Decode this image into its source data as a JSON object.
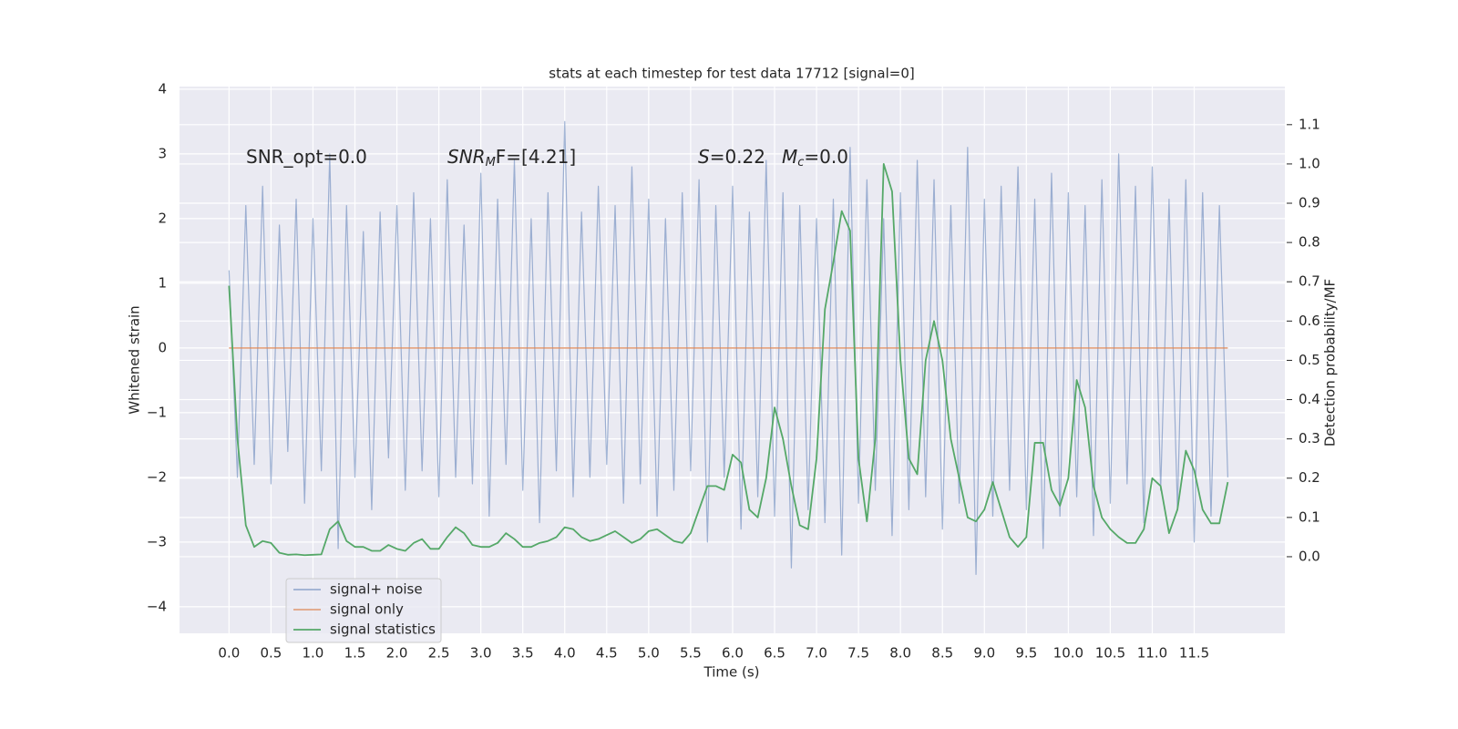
{
  "chart_data": {
    "type": "line",
    "title": "stats at each timestep for test data 17712 [signal=0]",
    "xlabel": "Time (s)",
    "ylabel": "Whitened strain",
    "y2label": "Detection probability/MF",
    "x": [
      0,
      0.1,
      0.2,
      0.3,
      0.4,
      0.5,
      0.6,
      0.7,
      0.8,
      0.9,
      1,
      1.1,
      1.2,
      1.3,
      1.4,
      1.5,
      1.6,
      1.7,
      1.8,
      1.9,
      2,
      2.1,
      2.2,
      2.3,
      2.4,
      2.5,
      2.6,
      2.7,
      2.8,
      2.9,
      3,
      3.1,
      3.2,
      3.3,
      3.4,
      3.5,
      3.6,
      3.7,
      3.8,
      3.9,
      4,
      4.1,
      4.2,
      4.3,
      4.4,
      4.5,
      4.6,
      4.7,
      4.8,
      4.9,
      5,
      5.1,
      5.2,
      5.3,
      5.4,
      5.5,
      5.6,
      5.7,
      5.8,
      5.9,
      6,
      6.1,
      6.2,
      6.3,
      6.4,
      6.5,
      6.6,
      6.7,
      6.8,
      6.9,
      7,
      7.1,
      7.2,
      7.3,
      7.4,
      7.5,
      7.6,
      7.7,
      7.8,
      7.9,
      8,
      8.1,
      8.2,
      8.3,
      8.4,
      8.5,
      8.6,
      8.7,
      8.8,
      8.9,
      9,
      9.1,
      9.2,
      9.3,
      9.4,
      9.5,
      9.6,
      9.7,
      9.8,
      9.9,
      10,
      10.1,
      10.2,
      10.3,
      10.4,
      10.5,
      10.6,
      10.7,
      10.8,
      10.9,
      11,
      11.1,
      11.2,
      11.3,
      11.4,
      11.5,
      11.6,
      11.7,
      11.8,
      11.9
    ],
    "series": [
      {
        "name": "signal+ noise",
        "color": "#4c72b0",
        "opacity": 0.5,
        "values": [
          1.2,
          -2.0,
          2.2,
          -1.8,
          2.5,
          -2.1,
          1.9,
          -1.6,
          2.3,
          -2.4,
          2.0,
          -1.9,
          3.0,
          -3.1,
          2.2,
          -2.0,
          1.8,
          -2.5,
          2.1,
          -1.7,
          2.2,
          -2.2,
          2.4,
          -1.9,
          2.0,
          -2.3,
          2.6,
          -2.0,
          1.9,
          -2.1,
          2.7,
          -2.6,
          2.3,
          -1.8,
          2.9,
          -2.2,
          2.0,
          -2.7,
          2.4,
          -1.9,
          3.5,
          -2.3,
          2.1,
          -2.0,
          2.5,
          -1.8,
          2.2,
          -2.4,
          2.8,
          -2.1,
          2.3,
          -2.6,
          2.0,
          -2.2,
          2.4,
          -1.9,
          2.6,
          -3.0,
          2.2,
          -2.0,
          2.5,
          -2.8,
          2.1,
          -2.3,
          2.9,
          -2.6,
          2.4,
          -3.4,
          2.2,
          -2.5,
          2.0,
          -2.7,
          2.3,
          -3.2,
          3.1,
          -2.4,
          2.6,
          -2.2,
          2.0,
          -2.9,
          2.4,
          -2.5,
          2.9,
          -2.3,
          2.6,
          -2.8,
          2.2,
          -2.4,
          3.1,
          -3.5,
          2.3,
          -2.6,
          2.5,
          -2.2,
          2.8,
          -2.5,
          2.3,
          -3.1,
          2.7,
          -2.6,
          2.4,
          -2.3,
          2.2,
          -2.9,
          2.6,
          -2.4,
          3.0,
          -2.1,
          2.5,
          -2.7,
          2.8,
          -2.2,
          2.3,
          -2.5,
          2.6,
          -3.0,
          2.4,
          -2.6,
          2.2,
          -2.0
        ]
      },
      {
        "name": "signal only",
        "color": "#dd8452",
        "opacity": 0.7,
        "values": [
          0,
          0,
          0,
          0,
          0,
          0,
          0,
          0,
          0,
          0,
          0,
          0,
          0,
          0,
          0,
          0,
          0,
          0,
          0,
          0,
          0,
          0,
          0,
          0,
          0,
          0,
          0,
          0,
          0,
          0,
          0,
          0,
          0,
          0,
          0,
          0,
          0,
          0,
          0,
          0,
          0,
          0,
          0,
          0,
          0,
          0,
          0,
          0,
          0,
          0,
          0,
          0,
          0,
          0,
          0,
          0,
          0,
          0,
          0,
          0,
          0,
          0,
          0,
          0,
          0,
          0,
          0,
          0,
          0,
          0,
          0,
          0,
          0,
          0,
          0,
          0,
          0,
          0,
          0,
          0,
          0,
          0,
          0,
          0,
          0,
          0,
          0,
          0,
          0,
          0,
          0,
          0,
          0,
          0,
          0,
          0,
          0,
          0,
          0,
          0,
          0,
          0,
          0,
          0,
          0,
          0,
          0,
          0,
          0,
          0,
          0,
          0,
          0,
          0,
          0,
          0,
          0,
          0,
          0,
          0
        ]
      },
      {
        "name": "signal statistics",
        "color": "#55a868",
        "opacity": 1,
        "axis": "y2",
        "values": [
          0.69,
          0.3,
          0.08,
          0.025,
          0.04,
          0.035,
          0.01,
          0.005,
          0.006,
          0.004,
          0.005,
          0.006,
          0.07,
          0.09,
          0.04,
          0.025,
          0.025,
          0.015,
          0.015,
          0.03,
          0.02,
          0.015,
          0.035,
          0.045,
          0.02,
          0.02,
          0.05,
          0.075,
          0.06,
          0.03,
          0.025,
          0.025,
          0.035,
          0.06,
          0.045,
          0.025,
          0.025,
          0.035,
          0.04,
          0.05,
          0.075,
          0.07,
          0.05,
          0.04,
          0.045,
          0.055,
          0.065,
          0.05,
          0.035,
          0.045,
          0.065,
          0.07,
          0.055,
          0.04,
          0.035,
          0.06,
          0.12,
          0.18,
          0.18,
          0.17,
          0.26,
          0.24,
          0.12,
          0.1,
          0.2,
          0.38,
          0.3,
          0.18,
          0.08,
          0.07,
          0.25,
          0.63,
          0.75,
          0.88,
          0.83,
          0.25,
          0.09,
          0.3,
          1.0,
          0.93,
          0.5,
          0.25,
          0.21,
          0.5,
          0.6,
          0.5,
          0.3,
          0.2,
          0.1,
          0.09,
          0.12,
          0.19,
          0.12,
          0.05,
          0.025,
          0.05,
          0.29,
          0.29,
          0.17,
          0.13,
          0.2,
          0.45,
          0.38,
          0.18,
          0.1,
          0.07,
          0.05,
          0.035,
          0.035,
          0.07,
          0.2,
          0.18,
          0.06,
          0.12,
          0.27,
          0.22,
          0.12,
          0.085,
          0.085,
          0.19
        ]
      }
    ],
    "xlim": [
      -0.59,
      12.58
    ],
    "ylim": [
      -4.41,
      4.04
    ],
    "y2lim": [
      -0.195,
      1.197
    ],
    "xticks": [
      {
        "value": 0,
        "label": "0.0"
      },
      0.5,
      {
        "value": 1,
        "label": "1.0"
      },
      1.5,
      {
        "value": 2,
        "label": "2.0"
      },
      2.5,
      {
        "value": 3,
        "label": "3.0"
      },
      3.5,
      {
        "value": 4,
        "label": "4.0"
      },
      4.5,
      {
        "value": 5,
        "label": "5.0"
      },
      5.5,
      {
        "value": 6,
        "label": "6.0"
      },
      6.5,
      {
        "value": 7,
        "label": "7.0"
      },
      7.5,
      {
        "value": 8,
        "label": "8.0"
      },
      8.5,
      {
        "value": 9,
        "label": "9.0"
      },
      9.5,
      {
        "value": 10,
        "label": "10.0"
      },
      10.5,
      {
        "value": 11,
        "label": "11.0"
      },
      11.5
    ],
    "yticks": [
      {
        "value": -4,
        "label": "−4"
      },
      {
        "value": -3,
        "label": "−3"
      },
      {
        "value": -2,
        "label": "−2"
      },
      {
        "value": -1,
        "label": "−1"
      },
      0,
      1,
      2,
      3,
      4
    ],
    "y2ticks": [
      {
        "value": 0,
        "label": "0.0"
      },
      0.1,
      0.2,
      0.3,
      0.4,
      0.5,
      0.6,
      0.7,
      0.8,
      0.9,
      {
        "value": 1,
        "label": "1.0"
      },
      1.1
    ],
    "grid": true,
    "legend": "lower left",
    "annotations": [
      {
        "text": "SNR_opt=0.0"
      },
      {
        "base": "SNR",
        "sub": "M",
        "tail": "F=[4.21]"
      },
      {
        "base": "S",
        "tail": "=0.22"
      },
      {
        "base": "M",
        "sub": "c",
        "tail": "=0.0"
      }
    ]
  }
}
